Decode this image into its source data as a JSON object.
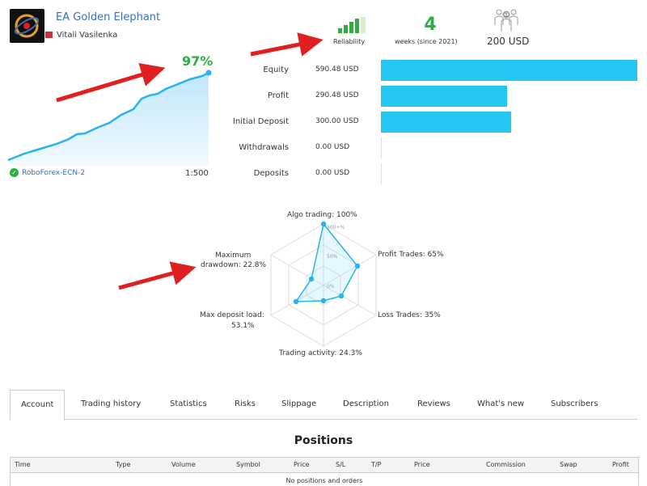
{
  "header": {
    "title": "EA Golden Elephant",
    "author": "Vitali Vasilenka",
    "reliability_label": "Reliability",
    "weeks_value": "4",
    "weeks_label": "weeks (since 2021)",
    "price": "200 USD"
  },
  "growth": {
    "percent": "97%",
    "broker": "RoboForex-ECN-2",
    "leverage": "1:500"
  },
  "balances": [
    {
      "label": "Equity",
      "value": "590.48 USD",
      "amount": 590.48
    },
    {
      "label": "Profit",
      "value": "290.48 USD",
      "amount": 290.48
    },
    {
      "label": "Initial Deposit",
      "value": "300.00 USD",
      "amount": 300.0
    },
    {
      "label": "Withdrawals",
      "value": "0.00 USD",
      "amount": 0
    },
    {
      "label": "Deposits",
      "value": "0.00 USD",
      "amount": 0
    }
  ],
  "radar": {
    "algo": "Algo trading: 100%",
    "profit_trades": "Profit Trades: 65%",
    "loss_trades": "Loss Trades: 35%",
    "activity": "Trading activity: 24.3%",
    "deposit_load_1": "Max deposit load:",
    "deposit_load_2": "53.1%",
    "drawdown_1": "Maximum",
    "drawdown_2": "drawdown: 22.8%",
    "tick_100": "100+%",
    "tick_50": "50%",
    "tick_0": "0%"
  },
  "tabs": [
    "Account",
    "Trading history",
    "Statistics",
    "Risks",
    "Slippage",
    "Description",
    "Reviews",
    "What's new",
    "Subscribers"
  ],
  "positions": {
    "title": "Positions",
    "columns": [
      "Time",
      "Type",
      "Volume",
      "Symbol",
      "Price",
      "S/L",
      "T/P",
      "Price",
      "Commission",
      "Swap",
      "Profit"
    ],
    "empty": "No positions and orders"
  },
  "colors": {
    "accent_blue": "#26c6f3",
    "green": "#2dae3f",
    "link": "#3b6fb6",
    "arrow": "#e02020"
  }
}
